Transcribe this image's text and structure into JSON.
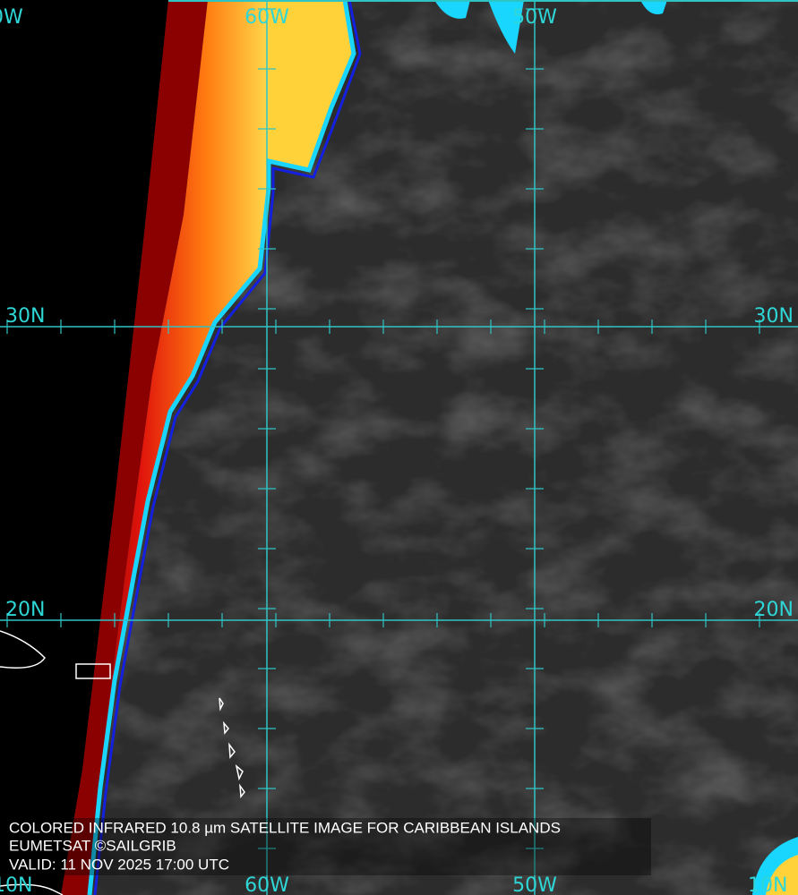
{
  "grid_labels": {
    "top": [
      "0W",
      "60W",
      "50W"
    ],
    "bottom": [
      "10N",
      "60W",
      "50W",
      "10N"
    ],
    "left": [
      "30N",
      "20N"
    ],
    "right": [
      "30N",
      "20N"
    ]
  },
  "caption": {
    "lines": [
      "COLORED INFRARED 10.8 µm SATELLITE IMAGE FOR CARIBBEAN ISLANDS",
      "EUMETSAT ©SAILGRIB",
      "VALID:  11 NOV 2025 17:00 UTC"
    ]
  }
}
